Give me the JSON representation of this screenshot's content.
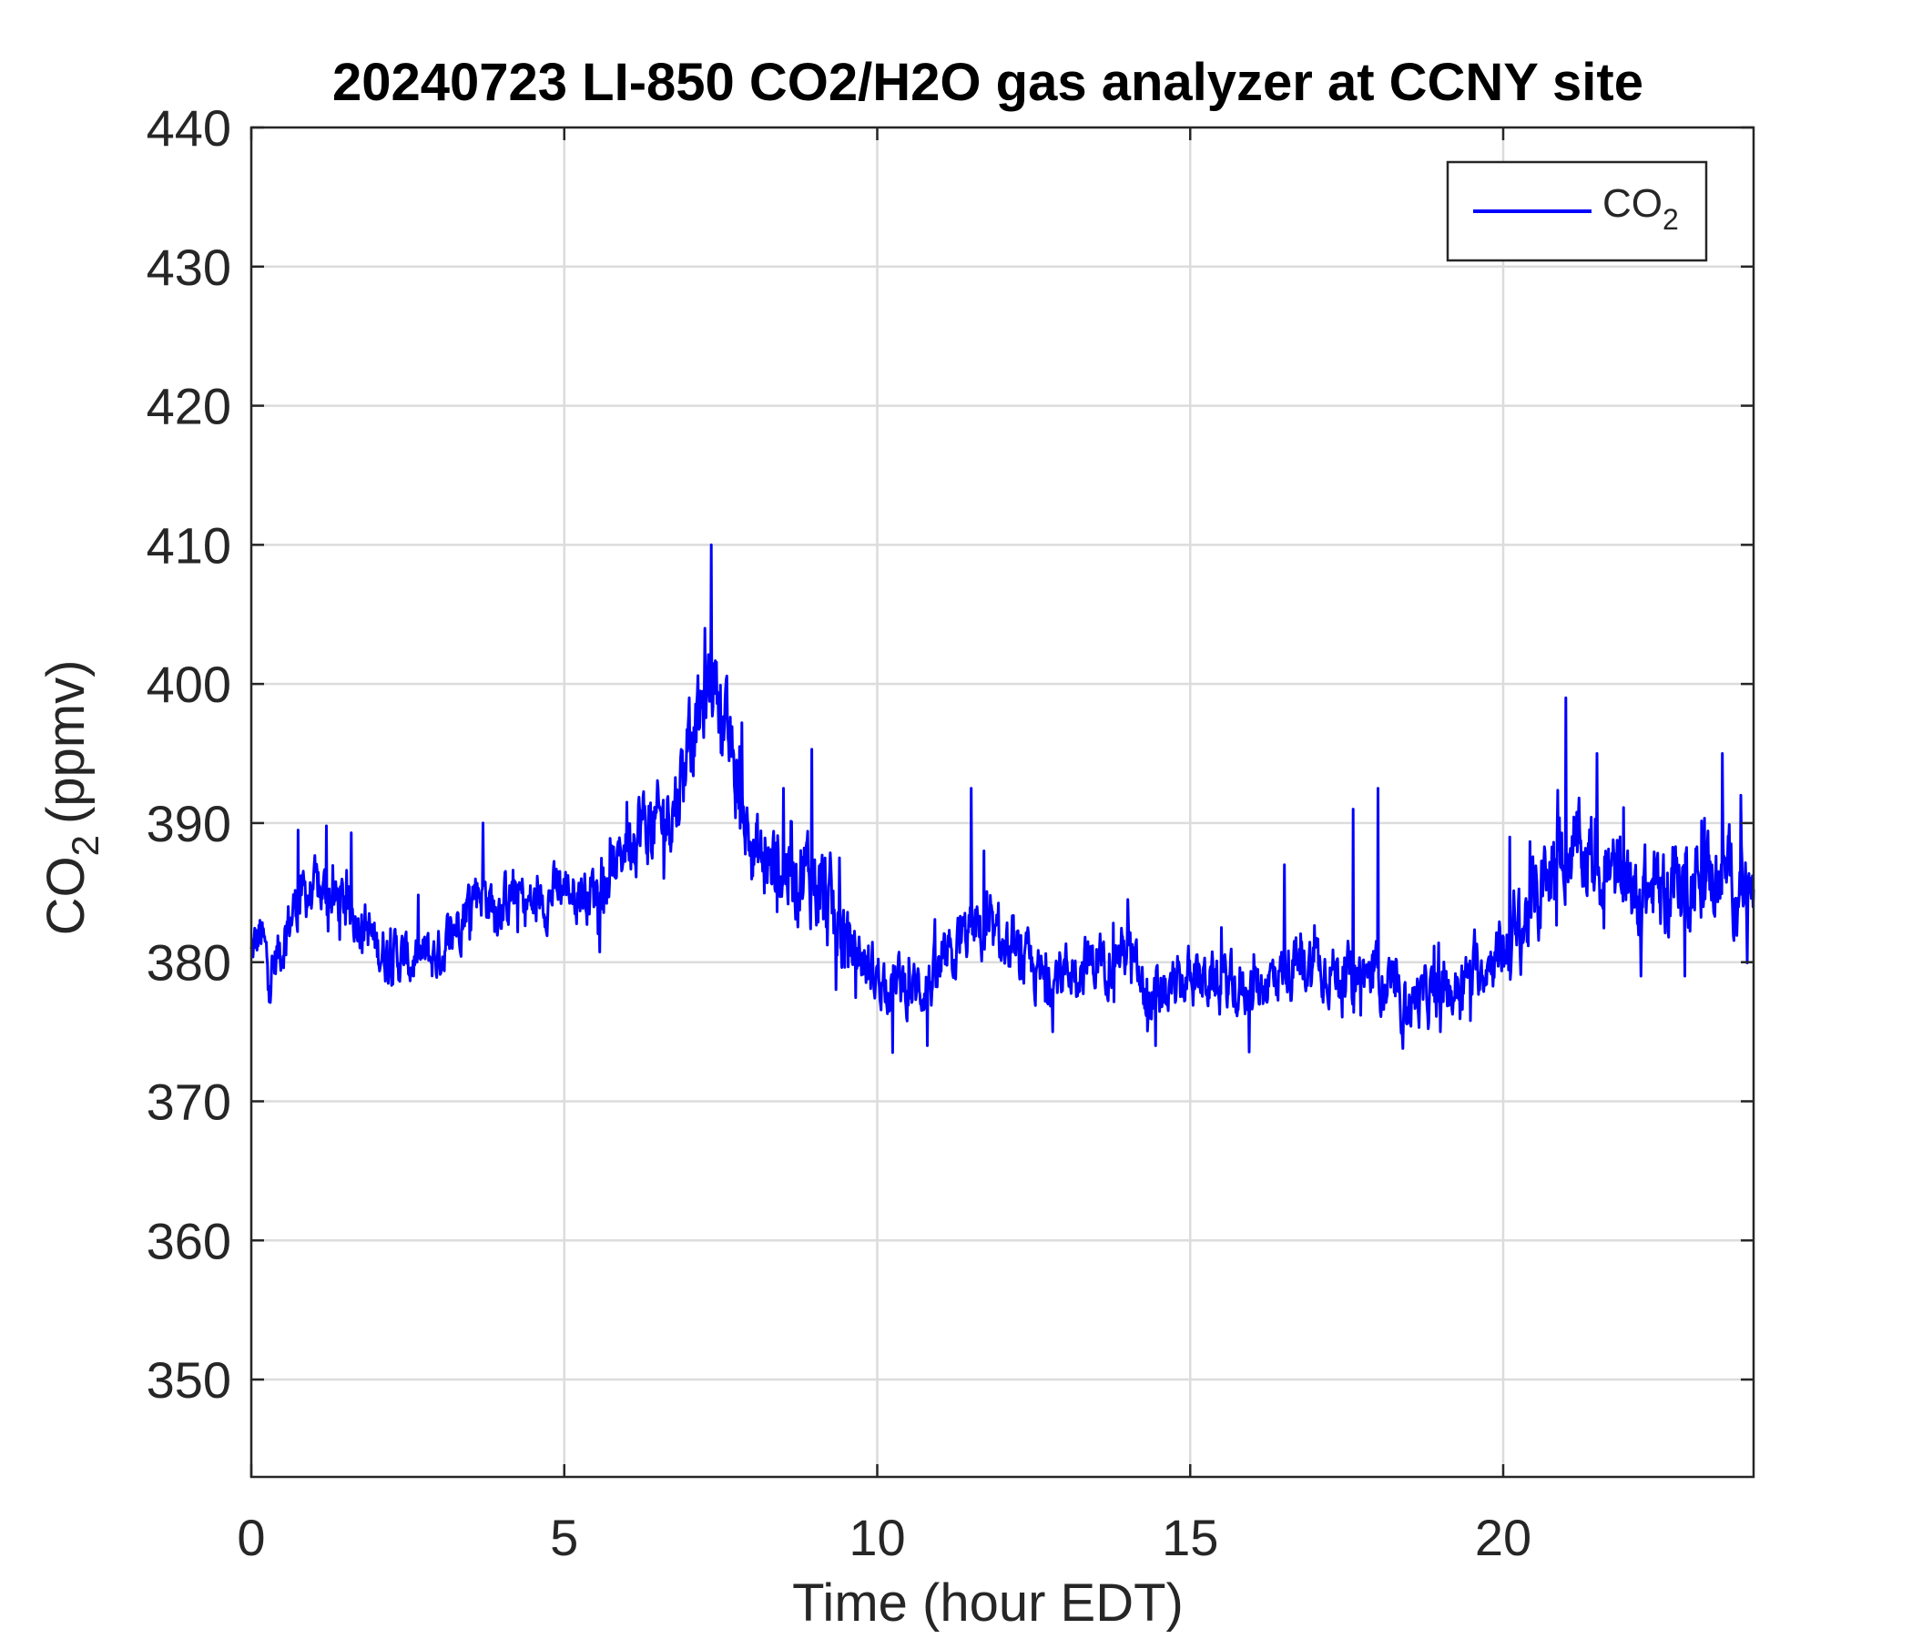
{
  "chart_data": {
    "type": "line",
    "title": "20240723 LI-850 CO2/H2O gas analyzer at CCNY site",
    "xlabel": "Time (hour EDT)",
    "ylabel": {
      "main": "CO",
      "sub": "2",
      "units": "(ppmv)"
    },
    "xlim": [
      0,
      24
    ],
    "ylim": [
      343,
      440
    ],
    "xticks": [
      0,
      5,
      10,
      15,
      20
    ],
    "yticks": [
      350,
      360,
      370,
      380,
      390,
      400,
      410,
      420,
      430,
      440
    ],
    "grid": true,
    "legend_position": "top-right",
    "series": [
      {
        "name": "CO2",
        "legend_label": {
          "main": "CO",
          "sub": "2"
        },
        "color": "#0000ff",
        "anchors": [
          [
            0.0,
            380.5
          ],
          [
            0.15,
            382.0
          ],
          [
            0.3,
            379.0
          ],
          [
            0.5,
            381.5
          ],
          [
            0.7,
            384.0
          ],
          [
            0.9,
            385.0
          ],
          [
            1.2,
            385.0
          ],
          [
            1.5,
            384.0
          ],
          [
            1.8,
            383.0
          ],
          [
            2.0,
            381.0
          ],
          [
            2.3,
            380.5
          ],
          [
            2.5,
            380.0
          ],
          [
            3.0,
            380.5
          ],
          [
            3.3,
            383.0
          ],
          [
            3.6,
            385.5
          ],
          [
            3.9,
            384.0
          ],
          [
            4.2,
            385.0
          ],
          [
            4.5,
            384.0
          ],
          [
            5.0,
            385.5
          ],
          [
            5.4,
            385.0
          ],
          [
            5.8,
            386.5
          ],
          [
            6.1,
            390.0
          ],
          [
            6.5,
            389.5
          ],
          [
            6.8,
            392.0
          ],
          [
            7.0,
            396.0
          ],
          [
            7.2,
            398.0
          ],
          [
            7.4,
            401.0
          ],
          [
            7.6,
            396.0
          ],
          [
            7.8,
            392.0
          ],
          [
            8.0,
            388.0
          ],
          [
            8.3,
            386.5
          ],
          [
            8.6,
            387.0
          ],
          [
            9.0,
            386.0
          ],
          [
            9.3,
            383.0
          ],
          [
            9.6,
            381.0
          ],
          [
            10.0,
            379.0
          ],
          [
            10.3,
            378.5
          ],
          [
            10.6,
            378.0
          ],
          [
            11.0,
            379.0
          ],
          [
            11.5,
            382.5
          ],
          [
            12.0,
            381.0
          ],
          [
            12.3,
            380.0
          ],
          [
            12.7,
            378.5
          ],
          [
            13.0,
            379.5
          ],
          [
            13.5,
            380.0
          ],
          [
            14.0,
            381.0
          ],
          [
            14.3,
            377.0
          ],
          [
            14.6,
            377.5
          ],
          [
            15.0,
            379.0
          ],
          [
            15.5,
            378.5
          ],
          [
            16.0,
            378.0
          ],
          [
            16.5,
            379.5
          ],
          [
            17.0,
            380.0
          ],
          [
            17.5,
            379.0
          ],
          [
            18.0,
            379.0
          ],
          [
            18.4,
            377.0
          ],
          [
            18.8,
            377.5
          ],
          [
            19.2,
            378.0
          ],
          [
            19.6,
            379.5
          ],
          [
            20.0,
            381.0
          ],
          [
            20.3,
            382.5
          ],
          [
            20.6,
            385.0
          ],
          [
            21.0,
            388.0
          ],
          [
            21.4,
            387.5
          ],
          [
            21.8,
            386.0
          ],
          [
            22.2,
            385.0
          ],
          [
            22.6,
            385.5
          ],
          [
            23.0,
            386.0
          ],
          [
            23.5,
            386.5
          ],
          [
            24.0,
            384.5
          ]
        ],
        "spikes": [
          [
            0.75,
            389.5
          ],
          [
            1.2,
            389.8
          ],
          [
            1.6,
            389.3
          ],
          [
            3.7,
            390.0
          ],
          [
            6.0,
            391.5
          ],
          [
            7.35,
            410.0
          ],
          [
            7.25,
            404.0
          ],
          [
            7.0,
            399.0
          ],
          [
            7.8,
            395.5
          ],
          [
            8.5,
            392.5
          ],
          [
            8.95,
            395.3
          ],
          [
            9.4,
            387.5
          ],
          [
            10.25,
            373.5
          ],
          [
            10.8,
            374.0
          ],
          [
            11.5,
            392.5
          ],
          [
            11.7,
            388.0
          ],
          [
            12.8,
            375.0
          ],
          [
            14.0,
            384.5
          ],
          [
            14.45,
            374.0
          ],
          [
            16.5,
            387.0
          ],
          [
            17.6,
            391.0
          ],
          [
            18.0,
            392.5
          ],
          [
            18.4,
            373.8
          ],
          [
            19.0,
            375.0
          ],
          [
            20.1,
            389.0
          ],
          [
            21.0,
            399.0
          ],
          [
            21.5,
            395.0
          ],
          [
            22.2,
            379.0
          ],
          [
            22.9,
            379.0
          ],
          [
            23.5,
            395.0
          ],
          [
            23.8,
            392.0
          ]
        ]
      }
    ]
  }
}
